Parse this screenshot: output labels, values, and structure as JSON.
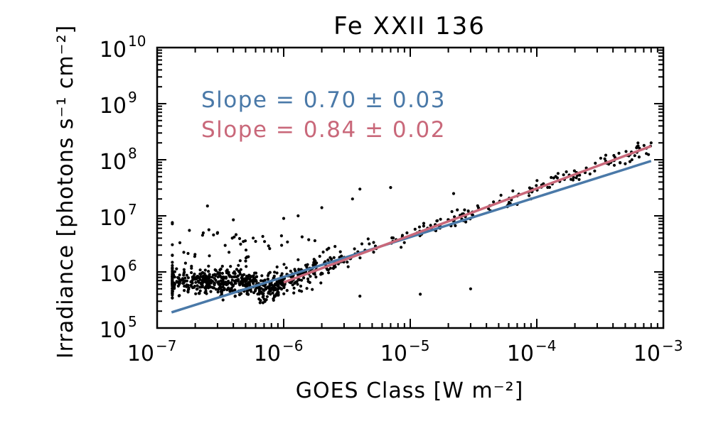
{
  "chart_data": {
    "type": "scatter",
    "title": "Fe XXII 136",
    "xlabel": "GOES Class [W m⁻²]",
    "ylabel": "Irradiance [photons s⁻¹ cm⁻²]",
    "xscale": "log",
    "yscale": "log",
    "xlim": [
      1e-07,
      0.001
    ],
    "ylim": [
      100000.0,
      10000000000.0
    ],
    "x_ticks": [
      {
        "value": 1e-07,
        "base": "10",
        "exp": "−7"
      },
      {
        "value": 1e-06,
        "base": "10",
        "exp": "−6"
      },
      {
        "value": 1e-05,
        "base": "10",
        "exp": "−5"
      },
      {
        "value": 0.0001,
        "base": "10",
        "exp": "−4"
      },
      {
        "value": 0.001,
        "base": "10",
        "exp": "−3"
      }
    ],
    "y_ticks": [
      {
        "value": 100000.0,
        "base": "10",
        "exp": "5"
      },
      {
        "value": 1000000.0,
        "base": "10",
        "exp": "6"
      },
      {
        "value": 10000000.0,
        "base": "10",
        "exp": "7"
      },
      {
        "value": 100000000.0,
        "base": "10",
        "exp": "8"
      },
      {
        "value": 1000000000.0,
        "base": "10",
        "exp": "9"
      },
      {
        "value": 10000000000.0,
        "base": "10",
        "exp": "10"
      }
    ],
    "annotations": [
      {
        "text": "Slope = 0.70 ± 0.03",
        "color": "#4a79a8"
      },
      {
        "text": "Slope = 0.84 ± 0.02",
        "color": "#c9687a"
      }
    ],
    "fits": [
      {
        "name": "fit-blue",
        "slope": 0.7,
        "color": "#4a79a8",
        "x_range": [
          1.3e-07,
          0.0008
        ],
        "y_range": [
          190000.0,
          95000000.0
        ]
      },
      {
        "name": "fit-pink",
        "slope": 0.84,
        "color": "#c9687a",
        "x_range": [
          1e-06,
          0.0008
        ],
        "y_range": [
          650000.0,
          175000000.0
        ]
      }
    ],
    "scatter": {
      "n_points": 900,
      "seed": 7,
      "log_x_range": [
        -6.88,
        -3.1
      ],
      "trend": "0.84 * (log10(x) + 6) + 5.81",
      "outliers": [
        [
          2.5e-07,
          15000000.0
        ],
        [
          4e-06,
          30000000.0
        ],
        [
          3.5e-06,
          20000000.0
        ],
        [
          7e-06,
          32000000.0
        ],
        [
          2.2e-05,
          25000000.0
        ],
        [
          4e-07,
          8500000.0
        ],
        [
          1.8e-07,
          5500000.0
        ],
        [
          1e-06,
          9000000.0
        ],
        [
          2e-06,
          14000000.0
        ],
        [
          1.2e-05,
          400000.0
        ],
        [
          3e-05,
          500000.0
        ],
        [
          4e-06,
          370000.0
        ],
        [
          7e-05,
          16000000.0
        ],
        [
          9e-05,
          20000000.0
        ],
        [
          0.0008,
          200000000.0
        ],
        [
          0.0005,
          85000000.0
        ],
        [
          1.3e-06,
          10000000.0
        ],
        [
          6e-07,
          3500000.0
        ],
        [
          1.5e-07,
          380000.0
        ],
        [
          2.5e-06,
          1800000.0
        ]
      ]
    }
  }
}
